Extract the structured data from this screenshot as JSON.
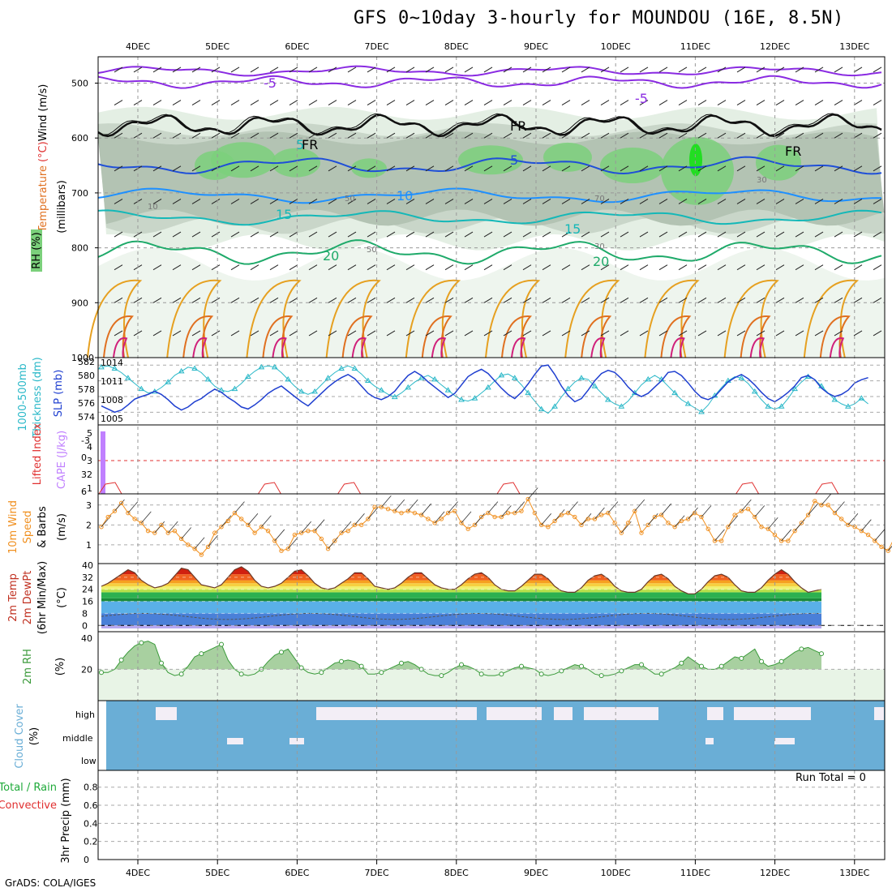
{
  "title": "GFS 0~10day 3-hourly for MOUNDOU (16E, 8.5N)",
  "credit": "GrADS: COLA/IGES",
  "run_total": "Run Total = 0",
  "colors": {
    "purple": "#8a2be2",
    "blue": "#1f4fd8",
    "lightblue": "#1e90ff",
    "teal": "#14b8b8",
    "green": "#1faa6a",
    "orange": "#e6a020",
    "darkorange": "#e07020",
    "magenta": "#d0207a",
    "cloud": "#6aaed6",
    "rh": "#3a9a3a",
    "cape": "#c080ff",
    "lifted": "#e03030",
    "wind": "#f09020",
    "slp": "#1f3fd0",
    "thick": "#2ab8c8"
  },
  "chart_data": [
    {
      "type": "contour",
      "name": "upper-air",
      "dates": [
        "4DEC",
        "5DEC",
        "6DEC",
        "7DEC",
        "8DEC",
        "9DEC",
        "10DEC",
        "11DEC",
        "12DEC",
        "13DEC"
      ],
      "y_ticks": [
        "500",
        "600",
        "700",
        "800",
        "900",
        "1000"
      ],
      "ylabel_parts": [
        "Temperature",
        "(°C)",
        "Wind",
        "(m/s)"
      ],
      "ylabel2": "(millibars)",
      "rh_label": "RH (%)",
      "contour_labels": [
        "-5",
        "-5",
        "FR",
        "FR",
        "FR",
        "5",
        "10",
        "15",
        "15",
        "20",
        "20",
        "5",
        "10",
        "50",
        "50",
        "30",
        "30",
        "70",
        "50"
      ]
    },
    {
      "type": "line",
      "name": "slp-thickness",
      "left_ticks": [
        "582",
        "580",
        "578",
        "576",
        "574"
      ],
      "right_ticks": [
        "1014",
        "1011",
        "1008",
        "1005"
      ],
      "ylabel_left": "Thickness (dm)",
      "ylabel_top": "1000-500mb",
      "ylabel_right": "SLP (mb)",
      "slp": [
        1006.2,
        1005.6,
        1005.0,
        1005.4,
        1006.4,
        1007.5,
        1008.0,
        1008.4,
        1009.0,
        1008.4,
        1007.4,
        1006.2,
        1005.4,
        1006.0,
        1007.0,
        1007.6,
        1008.6,
        1009.4,
        1008.8,
        1007.8,
        1007.0,
        1006.0,
        1005.6,
        1006.4,
        1007.4,
        1008.6,
        1009.4,
        1010.0,
        1009.0,
        1008.0,
        1007.0,
        1006.2,
        1007.4,
        1008.6,
        1009.8,
        1010.8,
        1011.6,
        1012.2,
        1011.4,
        1010.0,
        1008.6,
        1007.8,
        1007.4,
        1008.0,
        1009.0,
        1010.6,
        1012.0,
        1012.8,
        1012.0,
        1010.8,
        1009.8,
        1008.8,
        1007.8,
        1008.6,
        1010.2,
        1011.8,
        1012.6,
        1013.2,
        1012.4,
        1011.0,
        1009.6,
        1008.4,
        1007.6,
        1008.8,
        1010.4,
        1012.2,
        1013.8,
        1014.0,
        1012.2,
        1010.0,
        1008.2,
        1007.0,
        1007.6,
        1009.2,
        1011.0,
        1012.4,
        1013.0,
        1012.6,
        1011.4,
        1009.8,
        1008.6,
        1008.0,
        1008.6,
        1009.8,
        1011.0,
        1012.6,
        1012.8,
        1012.0,
        1010.6,
        1009.0,
        1007.8,
        1007.4,
        1008.0,
        1009.4,
        1010.8,
        1011.6,
        1012.2,
        1011.4,
        1010.2,
        1008.8,
        1007.6,
        1007.0,
        1007.8,
        1008.8,
        1010.0,
        1011.6,
        1012.0,
        1011.2,
        1009.6,
        1008.6,
        1008.0,
        1008.4,
        1009.2,
        1010.6,
        1011.2,
        1011.6
      ],
      "thickness": [
        581.8,
        582.0,
        581.6,
        581.0,
        580.2,
        579.4,
        578.6,
        578.0,
        578.2,
        578.8,
        579.6,
        580.6,
        581.2,
        581.8,
        581.6,
        581.0,
        580.0,
        579.0,
        578.4,
        578.2,
        578.6,
        579.4,
        580.4,
        581.2,
        581.8,
        582.0,
        581.8,
        581.0,
        580.0,
        579.0,
        578.2,
        577.8,
        578.2,
        579.2,
        580.2,
        581.0,
        581.6,
        582.0,
        581.6,
        580.8,
        579.8,
        579.0,
        578.4,
        577.8,
        577.4,
        578.0,
        578.8,
        579.6,
        580.2,
        580.6,
        580.0,
        579.2,
        578.4,
        577.6,
        577.0,
        576.8,
        577.2,
        578.0,
        578.8,
        579.8,
        580.6,
        580.8,
        580.2,
        579.2,
        578.0,
        576.8,
        575.6,
        575.0,
        576.0,
        577.4,
        578.6,
        579.6,
        580.2,
        580.0,
        579.0,
        578.0,
        577.0,
        576.4,
        576.0,
        576.8,
        578.0,
        579.2,
        580.0,
        580.6,
        580.0,
        579.0,
        578.0,
        577.0,
        576.4,
        575.8,
        575.2,
        576.2,
        577.6,
        578.8,
        579.8,
        580.4,
        580.2,
        579.4,
        578.2,
        577.0,
        576.0,
        575.6,
        576.0,
        577.2,
        578.6,
        579.6,
        580.4,
        580.0,
        579.0,
        578.0,
        577.0,
        576.4,
        576.0,
        576.4,
        577.2,
        576.4
      ]
    },
    {
      "type": "bar-line",
      "name": "cape-lifted",
      "left_ticks": [
        "-3",
        "0",
        "3",
        "6"
      ],
      "right_ticks": [
        "5",
        "4",
        "3",
        "2",
        "1"
      ],
      "ylabel_left": "Lifted Index",
      "ylabel_right": "CAPE (J/kg)",
      "cape_bar": 5
    },
    {
      "type": "line",
      "name": "wind10m",
      "y_ticks": [
        "3",
        "2",
        "1"
      ],
      "ylabel": [
        "10m Wind",
        "Speed",
        "& Barbs",
        "(m/s)"
      ],
      "values": [
        1.9,
        2.4,
        2.7,
        3.1,
        2.6,
        2.3,
        2.1,
        1.7,
        1.6,
        2.0,
        1.6,
        1.7,
        1.3,
        1.0,
        0.8,
        0.5,
        0.9,
        1.6,
        1.9,
        2.2,
        2.6,
        2.3,
        2.0,
        1.6,
        1.9,
        1.7,
        1.2,
        0.7,
        0.8,
        1.5,
        1.6,
        1.7,
        1.7,
        1.3,
        0.8,
        1.2,
        1.6,
        1.7,
        2.0,
        2.0,
        2.3,
        2.9,
        2.9,
        2.8,
        2.7,
        2.6,
        2.7,
        2.6,
        2.5,
        2.3,
        2.1,
        2.3,
        2.6,
        2.7,
        2.1,
        1.8,
        2.0,
        2.4,
        2.6,
        2.4,
        2.4,
        2.6,
        2.6,
        2.7,
        3.3,
        2.6,
        2.0,
        1.9,
        2.2,
        2.5,
        2.6,
        2.4,
        2.0,
        2.3,
        2.3,
        2.5,
        2.6,
        2.1,
        1.6,
        2.1,
        2.7,
        1.6,
        2.0,
        2.4,
        2.5,
        2.1,
        1.9,
        2.2,
        2.3,
        2.6,
        2.4,
        1.8,
        1.2,
        1.2,
        1.9,
        2.5,
        2.7,
        2.8,
        2.4,
        1.9,
        1.8,
        1.5,
        1.2,
        1.2,
        1.7,
        2.1,
        2.5,
        3.2,
        3.0,
        3.0,
        2.6,
        2.3,
        2.0,
        1.9,
        1.7,
        1.5,
        1.2,
        0.9,
        0.7,
        1.4
      ]
    },
    {
      "type": "area",
      "name": "temperature",
      "y_ticks": [
        "40",
        "32",
        "24",
        "16",
        "8",
        "0"
      ],
      "ylabel": [
        "2m Temp",
        "2m DewPt",
        "(6hr Min/Max)",
        "(°C)"
      ],
      "values": [
        26,
        28,
        31,
        34,
        37,
        35,
        30,
        27,
        25,
        26,
        28,
        33,
        38,
        37,
        32,
        27,
        26,
        25,
        27,
        32,
        37,
        39,
        36,
        30,
        26,
        25,
        26,
        28,
        32,
        36,
        37,
        33,
        28,
        25,
        24,
        25,
        28,
        31,
        35,
        35,
        31,
        26,
        25,
        24,
        25,
        28,
        32,
        35,
        35,
        31,
        27,
        25,
        24,
        24,
        27,
        31,
        34,
        35,
        32,
        27,
        24,
        23,
        23,
        26,
        30,
        34,
        34,
        31,
        26,
        23,
        22,
        22,
        25,
        30,
        33,
        34,
        31,
        26,
        23,
        22,
        22,
        24,
        29,
        33,
        34,
        31,
        26,
        23,
        21,
        21,
        24,
        29,
        33,
        34,
        32,
        27,
        23,
        22,
        22,
        25,
        30,
        34,
        37,
        34,
        29,
        25,
        22,
        23,
        24
      ]
    },
    {
      "type": "area",
      "name": "rh2m",
      "y_ticks": [
        "40",
        "20"
      ],
      "ylabel": [
        "2m RH",
        "(%)"
      ],
      "values": [
        18,
        18,
        20,
        26,
        31,
        35,
        37,
        38,
        36,
        24,
        18,
        16,
        17,
        22,
        28,
        30,
        32,
        34,
        36,
        26,
        20,
        17,
        16,
        17,
        20,
        25,
        29,
        31,
        33,
        27,
        21,
        18,
        17,
        18,
        21,
        24,
        25,
        26,
        25,
        22,
        17,
        17,
        18,
        20,
        22,
        24,
        25,
        23,
        20,
        17,
        16,
        16,
        18,
        21,
        23,
        22,
        20,
        17,
        16,
        16,
        17,
        19,
        21,
        22,
        21,
        20,
        17,
        16,
        17,
        19,
        21,
        23,
        22,
        20,
        17,
        16,
        16,
        17,
        19,
        21,
        23,
        23,
        20,
        17,
        17,
        19,
        21,
        24,
        28,
        25,
        22,
        20,
        20,
        22,
        25,
        28,
        27,
        30,
        33,
        25,
        22,
        23,
        25,
        28,
        31,
        33,
        34,
        32,
        30
      ]
    },
    {
      "type": "bar",
      "name": "cloud",
      "y_ticks": [
        "high",
        "middle",
        "low"
      ],
      "ylabel": [
        "Cloud Cover",
        "(%)"
      ]
    },
    {
      "type": "bar",
      "name": "precip",
      "y_ticks": [
        "0.8",
        "0.6",
        "0.4",
        "0.2",
        "0"
      ],
      "ylabel_left": [
        "Total / Rain",
        "Convective"
      ],
      "ylabel": "3hr Precip (mm)",
      "values": []
    }
  ]
}
